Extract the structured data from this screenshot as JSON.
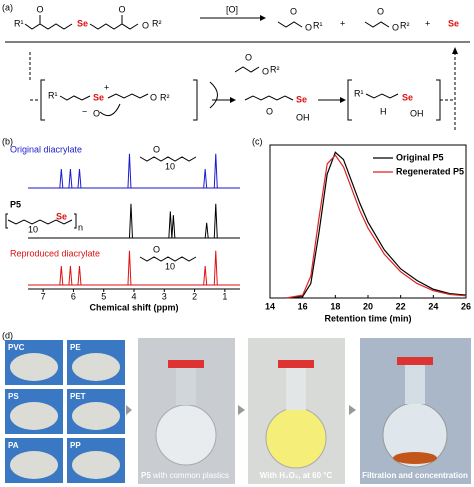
{
  "scheme": {
    "label": "(a)",
    "reagent": "[O]",
    "plus": "+",
    "selenium": "Se",
    "oxygen": "O",
    "r1": "R¹",
    "r2": "R²",
    "hydroxyl": "OH",
    "hydrogen": "H",
    "charge_pos": "+",
    "charge_neg": "−"
  },
  "nmr_structures": {
    "repeat": "10",
    "polymer_n": "n",
    "selenium": "Se",
    "oxygen": "O"
  },
  "photos": {
    "label": "(d)",
    "plastics": [
      "PVC",
      "PE",
      "PS",
      "PET",
      "PA",
      "PP"
    ],
    "steps": [
      {
        "bold": "P5",
        "text": " with common plastics"
      },
      {
        "text": "With H₂O₂, at 60 °C"
      },
      {
        "text": "Filtration and concentration"
      }
    ]
  },
  "chart_data": [
    {
      "type": "spectrum",
      "label": "(b)",
      "x_label": "Chemical shift (ppm)",
      "xlim": [
        7.5,
        0.5
      ],
      "xticks": [
        7,
        6,
        5,
        4,
        3,
        2,
        1
      ],
      "series": [
        {
          "name": "Original diacrylate",
          "color": "#1a1acc",
          "x": [
            6.4,
            6.1,
            5.8,
            4.15,
            1.65,
            1.3
          ],
          "values": [
            0.5,
            0.5,
            0.5,
            0.9,
            0.5,
            0.9
          ]
        },
        {
          "name": "P5",
          "color": "#000000",
          "x": [
            4.1,
            2.8,
            2.7,
            1.6,
            1.3
          ],
          "values": [
            0.9,
            0.7,
            0.6,
            0.4,
            0.9
          ]
        },
        {
          "name": "Reproduced diacrylate",
          "color": "#dd1111",
          "x": [
            6.4,
            6.1,
            5.8,
            4.15,
            1.65,
            1.3
          ],
          "values": [
            0.5,
            0.5,
            0.5,
            0.9,
            0.5,
            0.9
          ]
        }
      ]
    },
    {
      "type": "line",
      "label": "(c)",
      "x_label": "Retention time (min)",
      "xlim": [
        14,
        26
      ],
      "xticks": [
        14,
        16,
        18,
        20,
        22,
        24,
        26
      ],
      "ylim": [
        0,
        1.05
      ],
      "x": [
        15,
        16,
        16.5,
        17,
        17.5,
        18,
        18.5,
        19,
        19.5,
        20,
        21,
        22,
        23,
        24,
        25,
        26
      ],
      "series": [
        {
          "name": "Original P5",
          "color": "#000000",
          "values": [
            0,
            0.01,
            0.1,
            0.45,
            0.85,
            1.0,
            0.95,
            0.8,
            0.65,
            0.52,
            0.33,
            0.2,
            0.12,
            0.06,
            0.03,
            0.02
          ]
        },
        {
          "name": "Regenerated P5",
          "color": "#dd2222",
          "values": [
            0,
            0.02,
            0.15,
            0.55,
            0.92,
            0.98,
            0.9,
            0.75,
            0.6,
            0.48,
            0.3,
            0.18,
            0.1,
            0.05,
            0.025,
            0.015
          ]
        }
      ]
    }
  ]
}
